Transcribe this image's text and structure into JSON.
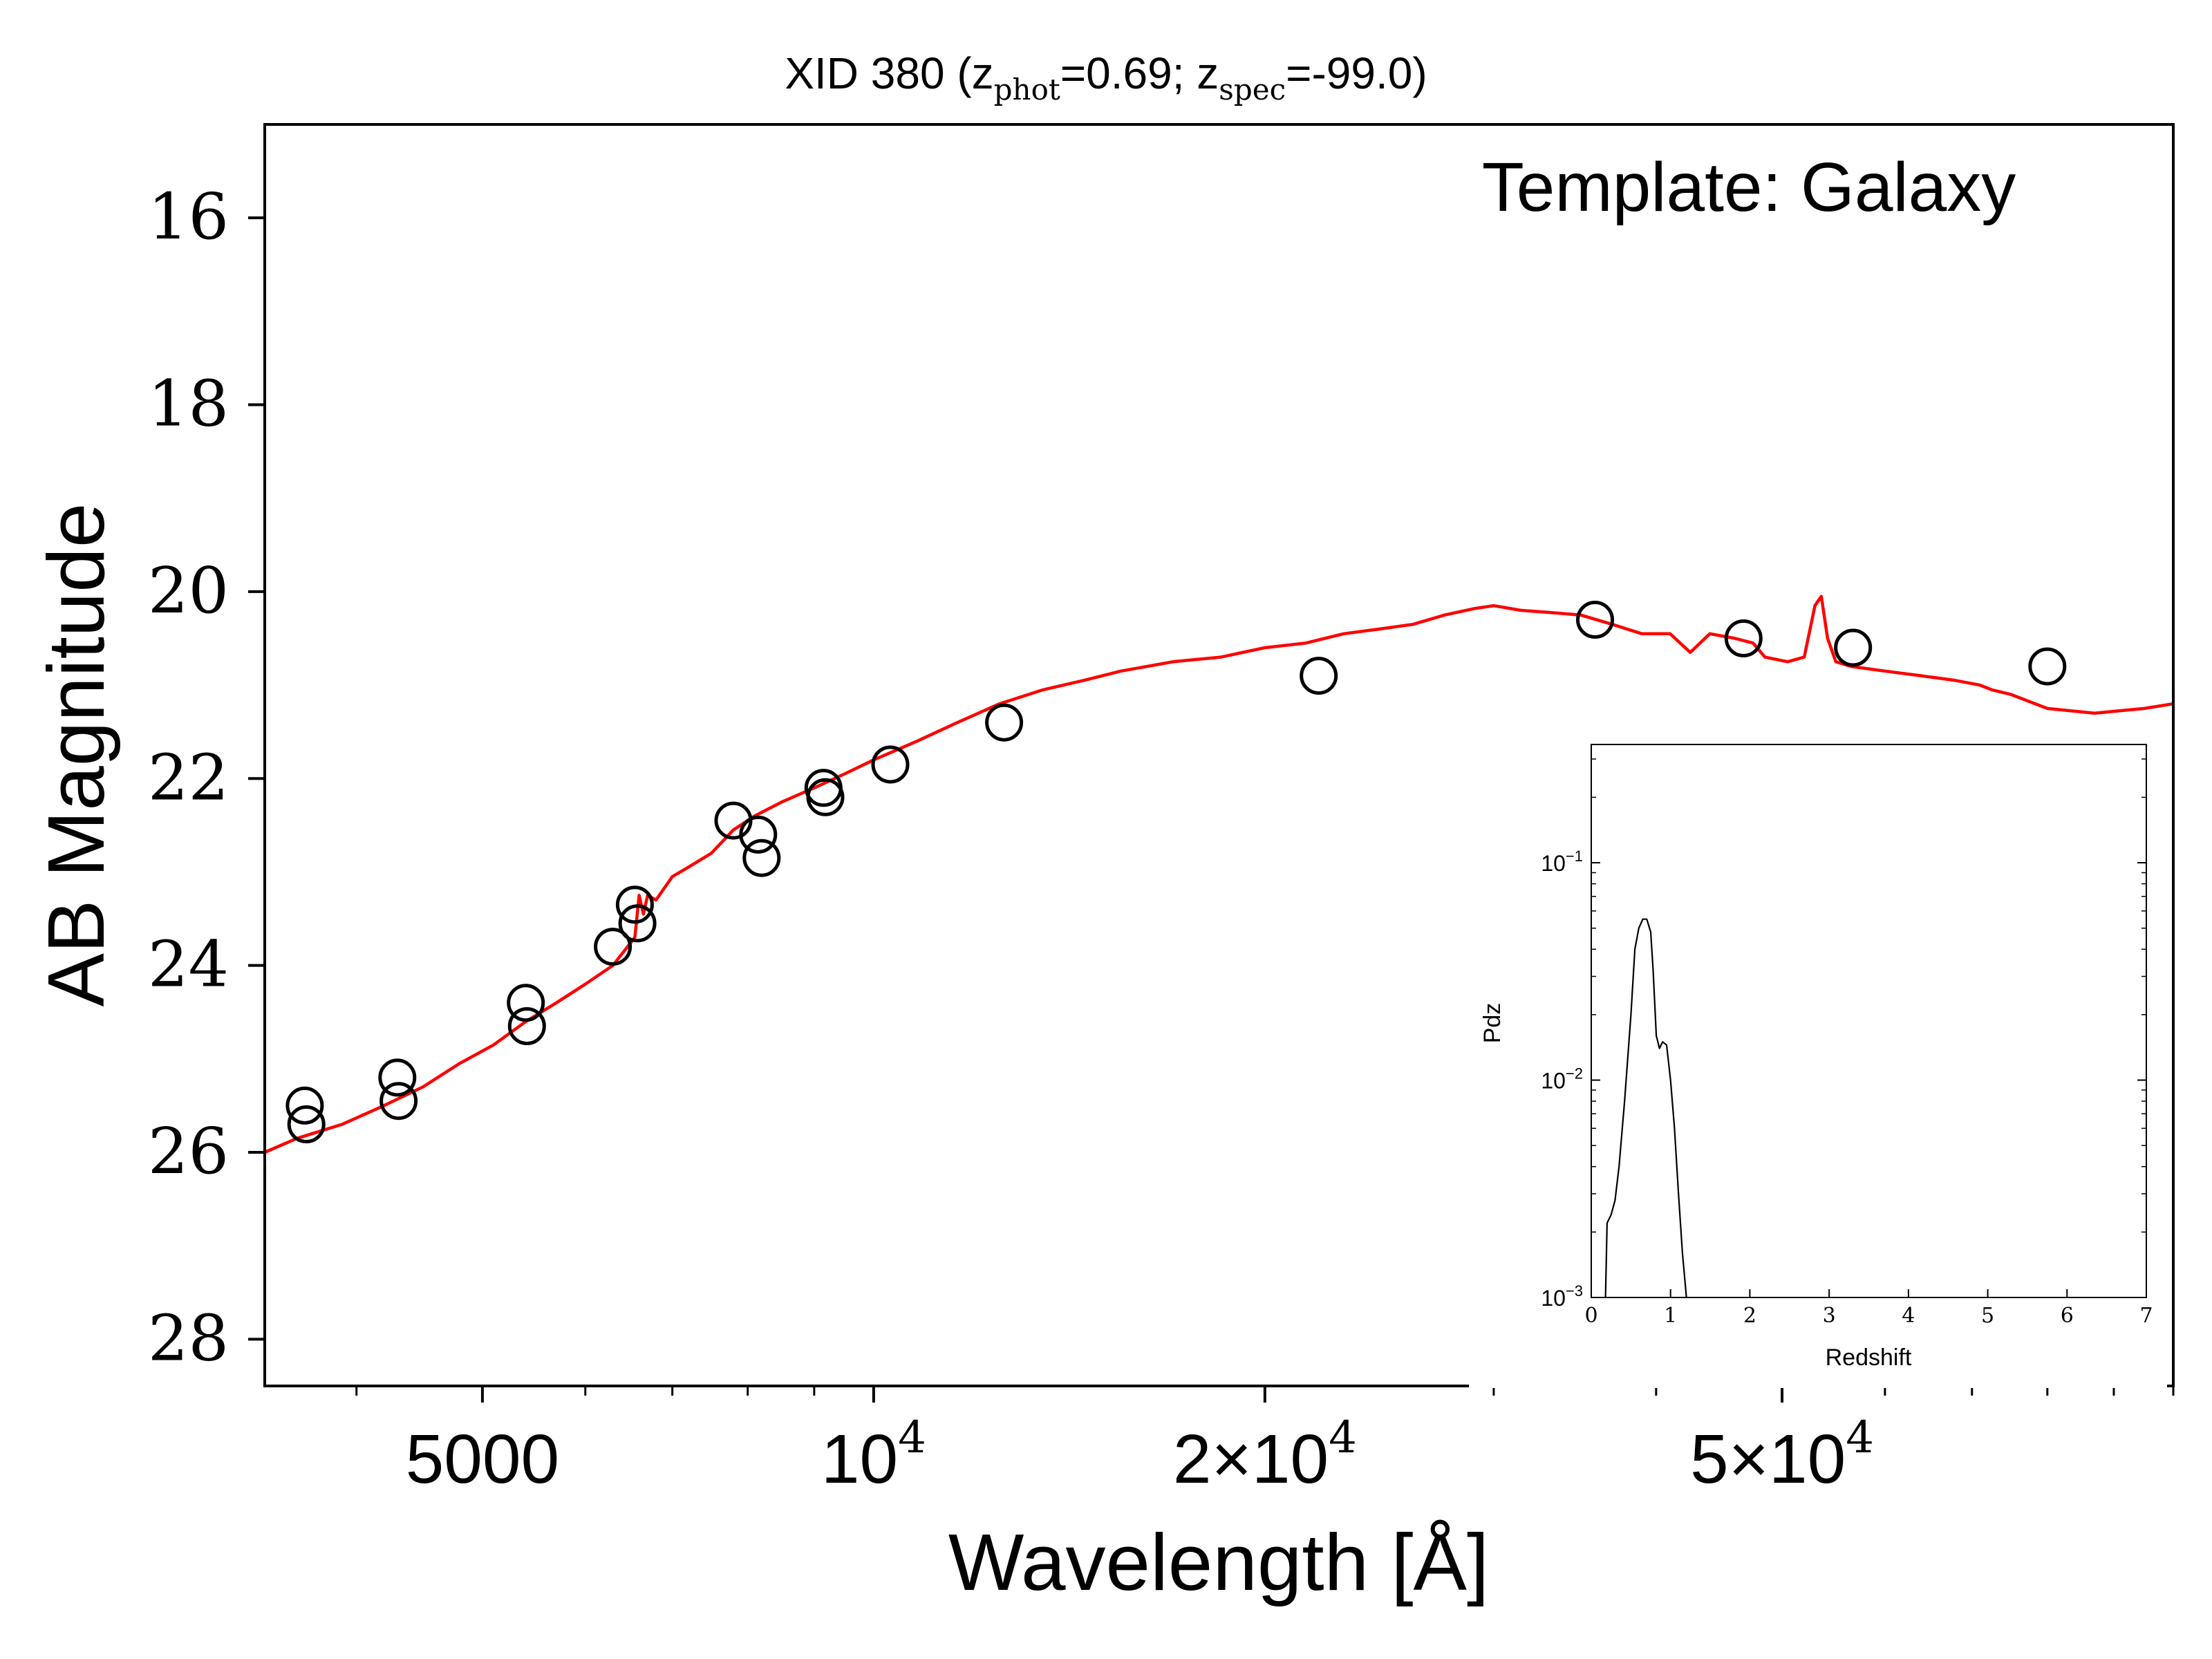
{
  "chart_data": [
    {
      "type": "scatter",
      "title_main": "XID 380 (z",
      "title_sub1": "phot",
      "title_mid": "=0.69; z",
      "title_sub2": "spec",
      "title_end": "=-99.0)",
      "annotation": "Template: Galaxy",
      "xlabel": "Wavelength [Å]",
      "ylabel": "AB Magnitude",
      "x_scale": "log",
      "xlim": [
        3400,
        100000
      ],
      "ylim": [
        28.5,
        15
      ],
      "y_inverted": true,
      "yticks": [
        16,
        18,
        20,
        22,
        24,
        26,
        28
      ],
      "xticks": [
        {
          "value": 5000,
          "base": "5000",
          "exp": ""
        },
        {
          "value": 10000,
          "base": "10",
          "exp": "4"
        },
        {
          "value": 20000,
          "base": "2×10",
          "exp": "4"
        },
        {
          "value": 50000,
          "base": "5×10",
          "exp": "4"
        }
      ],
      "grid": false,
      "line_color": "#ff0000",
      "marker_color": "#000000",
      "series": [
        {
          "kind": "points",
          "x": [
            3650,
            3660,
            4300,
            4310,
            5400,
            5410,
            6300,
            6550,
            6580,
            7800,
            8150,
            8200,
            9150,
            9180,
            10300,
            12600,
            22000,
            35900,
            46700,
            56700,
            80000
          ],
          "y": [
            25.5,
            25.7,
            25.2,
            25.45,
            24.4,
            24.65,
            23.8,
            23.35,
            23.55,
            22.45,
            22.6,
            22.85,
            22.1,
            22.2,
            21.85,
            21.4,
            20.9,
            20.3,
            20.5,
            20.6,
            20.8
          ]
        },
        {
          "kind": "template-line",
          "x": [
            3400,
            3600,
            3900,
            4200,
            4500,
            4800,
            5100,
            5400,
            5700,
            6000,
            6300,
            6550,
            6600,
            6650,
            6700,
            6800,
            7000,
            7200,
            7500,
            7800,
            8100,
            8500,
            9000,
            9500,
            10000,
            10800,
            11600,
            12500,
            13500,
            14500,
            15500,
            17000,
            18500,
            20000,
            21500,
            23000,
            24500,
            26000,
            27500,
            29000,
            30000,
            31500,
            33000,
            35000,
            37000,
            39000,
            41000,
            42500,
            44000,
            46000,
            47500,
            48500,
            50500,
            52000,
            53000,
            53600,
            54200,
            55000,
            56500,
            60000,
            64000,
            68000,
            71000,
            72500,
            75000,
            80000,
            87000,
            95000,
            100000
          ],
          "y": [
            26.0,
            25.85,
            25.7,
            25.5,
            25.3,
            25.05,
            24.85,
            24.6,
            24.4,
            24.2,
            24.0,
            23.7,
            23.25,
            23.45,
            23.25,
            23.3,
            23.05,
            22.95,
            22.8,
            22.55,
            22.4,
            22.25,
            22.1,
            21.95,
            21.8,
            21.6,
            21.4,
            21.2,
            21.05,
            20.95,
            20.85,
            20.75,
            20.7,
            20.6,
            20.55,
            20.45,
            20.4,
            20.35,
            20.25,
            20.18,
            20.15,
            20.2,
            20.22,
            20.25,
            20.35,
            20.45,
            20.45,
            20.65,
            20.45,
            20.5,
            20.55,
            20.7,
            20.75,
            20.7,
            20.15,
            20.05,
            20.5,
            20.75,
            20.8,
            20.85,
            20.9,
            20.95,
            21.0,
            21.05,
            21.1,
            21.25,
            21.3,
            21.25,
            21.2
          ]
        }
      ]
    },
    {
      "type": "line",
      "xlabel": "Redshift",
      "ylabel": "Pdz",
      "y_scale": "log",
      "xlim": [
        0,
        7
      ],
      "ylim": [
        0.001,
        0.35
      ],
      "xticks": [
        0,
        1,
        2,
        3,
        4,
        5,
        6,
        7
      ],
      "yticks": [
        {
          "value": 0.1,
          "base": "10",
          "exp": "−1"
        },
        {
          "value": 0.01,
          "base": "10",
          "exp": "−2"
        },
        {
          "value": 0.001,
          "base": "10",
          "exp": "−3"
        }
      ],
      "line_color": "#000000",
      "series": [
        {
          "x": [
            0.18,
            0.2,
            0.25,
            0.3,
            0.35,
            0.42,
            0.5,
            0.55,
            0.6,
            0.65,
            0.7,
            0.75,
            0.78,
            0.82,
            0.86,
            0.9,
            0.95,
            1.0,
            1.05,
            1.1,
            1.15,
            1.2
          ],
          "y": [
            0.001,
            0.0022,
            0.0024,
            0.0028,
            0.004,
            0.008,
            0.02,
            0.04,
            0.05,
            0.055,
            0.055,
            0.048,
            0.032,
            0.016,
            0.014,
            0.015,
            0.0145,
            0.01,
            0.006,
            0.003,
            0.0016,
            0.001
          ]
        }
      ]
    }
  ]
}
